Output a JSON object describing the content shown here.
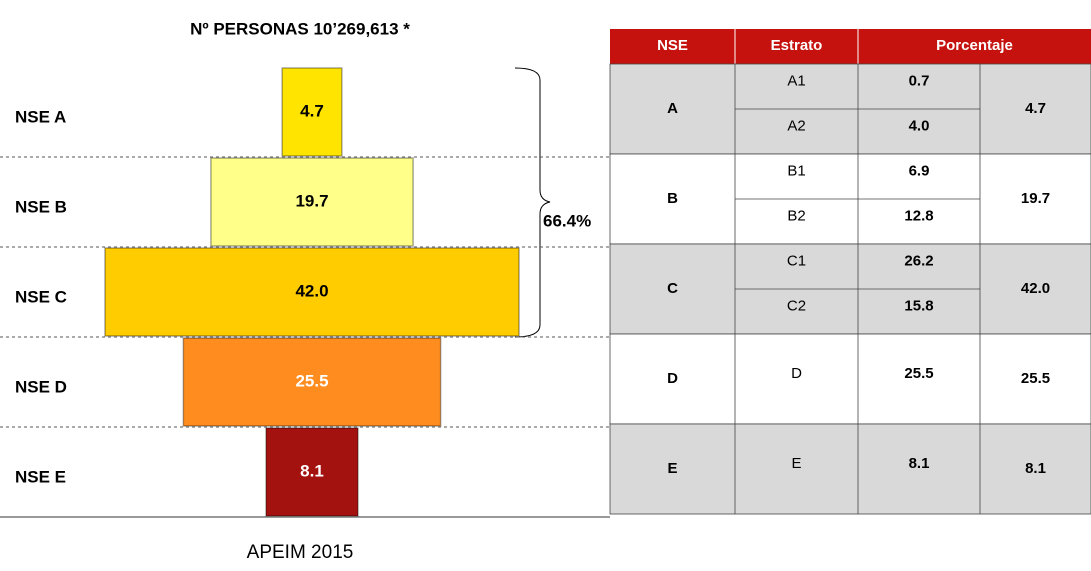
{
  "chart_data": {
    "type": "bar",
    "title": "Nº PERSONAS 10’269,613 *",
    "categories": [
      "NSE A",
      "NSE B",
      "NSE C",
      "NSE D",
      "NSE E"
    ],
    "values": [
      4.7,
      19.7,
      42.0,
      25.5,
      8.1
    ],
    "value_labels": [
      "4.7",
      "19.7",
      "42.0",
      "25.5",
      "8.1"
    ],
    "colors": [
      "#ffe400",
      "#ffff8a",
      "#ffcc00",
      "#ff8c1e",
      "#a3120e"
    ],
    "label_colors": [
      "#000000",
      "#000000",
      "#000000",
      "#ffffff",
      "#ffffff"
    ],
    "annotation": "66.4%",
    "source": "APEIM 2015"
  },
  "table": {
    "headers": [
      "NSE",
      "Estrato",
      "Porcentaje"
    ],
    "rows": [
      {
        "nse": "A",
        "strata": [
          {
            "name": "A1",
            "pct": "0.7"
          },
          {
            "name": "A2",
            "pct": "4.0"
          }
        ],
        "total": "4.7"
      },
      {
        "nse": "B",
        "strata": [
          {
            "name": "B1",
            "pct": "6.9"
          },
          {
            "name": "B2",
            "pct": "12.8"
          }
        ],
        "total": "19.7"
      },
      {
        "nse": "C",
        "strata": [
          {
            "name": "C1",
            "pct": "26.2"
          },
          {
            "name": "C2",
            "pct": "15.8"
          }
        ],
        "total": "42.0"
      },
      {
        "nse": "D",
        "strata": [
          {
            "name": "D",
            "pct": "25.5"
          }
        ],
        "total": "25.5"
      },
      {
        "nse": "E",
        "strata": [
          {
            "name": "E",
            "pct": "8.1"
          }
        ],
        "total": "8.1"
      }
    ]
  }
}
